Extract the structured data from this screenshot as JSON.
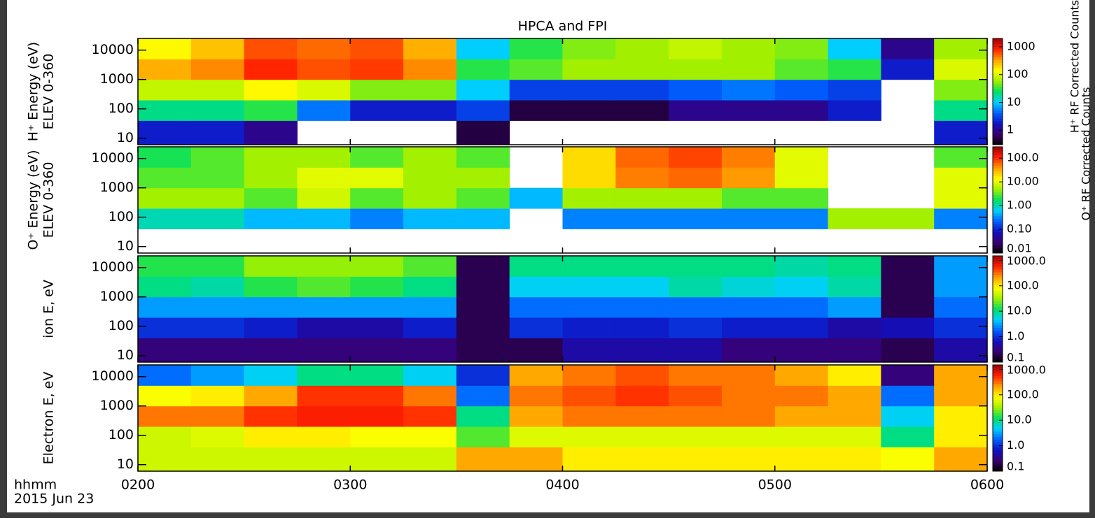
{
  "chart_data": [
    {
      "type": "heatmap",
      "title": "HPCA and FPI",
      "ylabel": [
        "H⁺ Energy (eV)",
        "ELEV 0-360"
      ],
      "colorbar_label": "H⁺ RF Corrected Counts",
      "xlim": [
        2,
        6
      ],
      "ylim": [
        6,
        25000
      ],
      "y_log": true,
      "yticks": [
        10,
        100,
        1000,
        10000
      ],
      "x_edges": [
        2,
        2.25,
        2.5,
        2.75,
        3,
        3.25,
        3.5,
        3.75,
        4,
        4.25,
        4.5,
        4.75,
        5,
        5.25,
        5.5,
        5.75,
        6
      ],
      "y_edges": [
        6,
        40,
        200,
        1000,
        5000,
        25000
      ],
      "z": [
        [
          2,
          2,
          1,
          null,
          null,
          null,
          0.5,
          null,
          null,
          null,
          null,
          null,
          null,
          null,
          null,
          2
        ],
        [
          20,
          20,
          30,
          5,
          2,
          2,
          3,
          0.5,
          0.5,
          0.5,
          1,
          1,
          1,
          2,
          null,
          20
        ],
        [
          80,
          80,
          150,
          100,
          50,
          50,
          10,
          3,
          3,
          3,
          4,
          5,
          4,
          3,
          null,
          50
        ],
        [
          300,
          400,
          800,
          600,
          700,
          400,
          30,
          40,
          60,
          60,
          60,
          60,
          40,
          30,
          2,
          100
        ],
        [
          150,
          250,
          600,
          500,
          600,
          300,
          10,
          30,
          50,
          60,
          80,
          60,
          50,
          10,
          1,
          60
        ]
      ],
      "clim": [
        0.3,
        2000
      ],
      "cticks": [
        1,
        10,
        100,
        1000
      ],
      "colormap": [
        "#000000",
        "#3a0070",
        "#1010c0",
        "#0060ff",
        "#00d0ff",
        "#00e060",
        "#a0f000",
        "#ffff00",
        "#ffa000",
        "#ff2000",
        "#a00000"
      ]
    },
    {
      "type": "heatmap",
      "ylabel": [
        "O⁺ Energy (eV)",
        "ELEV 0-360"
      ],
      "colorbar_label": "O⁺ RF Corrected Counts",
      "xlim": [
        2,
        6
      ],
      "ylim": [
        6,
        25000
      ],
      "y_log": true,
      "yticks": [
        10,
        100,
        1000,
        10000
      ],
      "x_edges": [
        2,
        2.25,
        2.5,
        2.75,
        3,
        3.25,
        3.5,
        3.75,
        4,
        4.25,
        4.5,
        4.75,
        5,
        5.25,
        5.5,
        5.75,
        6
      ],
      "y_edges": [
        6,
        40,
        200,
        1000,
        5000,
        25000
      ],
      "z": [
        [
          null,
          null,
          null,
          null,
          null,
          null,
          null,
          null,
          null,
          null,
          null,
          null,
          null,
          null,
          null,
          null
        ],
        [
          1,
          1,
          0.5,
          0.5,
          0.3,
          0.5,
          0.5,
          null,
          0.3,
          0.3,
          0.3,
          0.3,
          0.3,
          5,
          5,
          0.3
        ],
        [
          5,
          5,
          3,
          8,
          3,
          5,
          3,
          0.5,
          5,
          5,
          5,
          3,
          3,
          null,
          null,
          10
        ],
        [
          3,
          3,
          5,
          10,
          10,
          5,
          5,
          null,
          20,
          50,
          60,
          40,
          10,
          null,
          null,
          10
        ],
        [
          2,
          3,
          5,
          5,
          3,
          5,
          3,
          null,
          20,
          60,
          80,
          50,
          10,
          null,
          null,
          3
        ]
      ],
      "clim": [
        0.01,
        300
      ],
      "cticks": [
        {
          "value": 0.01,
          "label": "0.01"
        },
        {
          "value": 0.1,
          "label": "0.10"
        },
        {
          "value": 1,
          "label": "1.00"
        },
        {
          "value": 10,
          "label": "10.00"
        },
        {
          "value": 100,
          "label": "100.0"
        }
      ],
      "colormap": [
        "#000000",
        "#3a0070",
        "#1010c0",
        "#0060ff",
        "#00d0ff",
        "#00e060",
        "#a0f000",
        "#ffff00",
        "#ffa000",
        "#ff2000",
        "#a00000"
      ]
    },
    {
      "type": "heatmap",
      "ylabel": [
        "ion E, eV"
      ],
      "xlim": [
        2,
        6
      ],
      "ylim": [
        6,
        25000
      ],
      "y_log": true,
      "yticks": [
        10,
        100,
        1000,
        10000
      ],
      "x_edges": [
        2,
        2.25,
        2.5,
        2.75,
        3,
        3.25,
        3.5,
        3.75,
        4,
        4.25,
        4.5,
        4.75,
        5,
        5.25,
        5.5,
        5.75,
        6
      ],
      "y_edges": [
        6,
        40,
        200,
        1000,
        5000,
        25000
      ],
      "z": [
        [
          0.3,
          0.3,
          0.3,
          0.3,
          0.3,
          0.3,
          0.2,
          0.2,
          0.5,
          0.5,
          0.5,
          0.3,
          0.3,
          0.3,
          0.2,
          0.5
        ],
        [
          1,
          1,
          0.8,
          0.5,
          0.5,
          0.8,
          0.2,
          1,
          0.8,
          0.8,
          1,
          0.8,
          0.8,
          0.5,
          0.6,
          1
        ],
        [
          3,
          3,
          3,
          3,
          3,
          3,
          0.2,
          2,
          2,
          2,
          2,
          2,
          2,
          3,
          0.2,
          2
        ],
        [
          10,
          8,
          15,
          20,
          15,
          10,
          0.2,
          5,
          5,
          5,
          8,
          6,
          5,
          8,
          0.2,
          3
        ],
        [
          15,
          15,
          30,
          30,
          30,
          20,
          0.2,
          10,
          10,
          10,
          10,
          10,
          8,
          10,
          0.2,
          3
        ]
      ],
      "clim": [
        0.1,
        1500
      ],
      "cticks": [
        {
          "value": 0.1,
          "label": "0.1"
        },
        {
          "value": 1,
          "label": "1.0"
        },
        {
          "value": 10,
          "label": "10.0"
        },
        {
          "value": 100,
          "label": "100.0"
        },
        {
          "value": 1000,
          "label": "1000.0"
        }
      ],
      "colormap": [
        "#000000",
        "#3a0070",
        "#1010c0",
        "#0060ff",
        "#00d0ff",
        "#00e060",
        "#a0f000",
        "#ffff00",
        "#ffa000",
        "#ff2000",
        "#a00000"
      ]
    },
    {
      "type": "heatmap",
      "ylabel": [
        "Electron E, eV"
      ],
      "xlim": [
        2,
        6
      ],
      "ylim": [
        6,
        25000
      ],
      "y_log": true,
      "yticks": [
        10,
        100,
        1000,
        10000
      ],
      "x_edges": [
        2,
        2.25,
        2.5,
        2.75,
        3,
        3.25,
        3.5,
        3.75,
        4,
        4.25,
        4.5,
        4.75,
        5,
        5.25,
        5.5,
        5.75,
        6
      ],
      "y_edges": [
        6,
        40,
        200,
        1000,
        5000,
        25000
      ],
      "z": [
        [
          50,
          50,
          50,
          50,
          50,
          50,
          200,
          200,
          100,
          100,
          100,
          100,
          100,
          100,
          80,
          200
        ],
        [
          50,
          60,
          100,
          100,
          80,
          80,
          20,
          60,
          60,
          60,
          60,
          60,
          60,
          60,
          10,
          100
        ],
        [
          300,
          300,
          500,
          600,
          600,
          500,
          10,
          200,
          300,
          300,
          300,
          300,
          200,
          200,
          5,
          100
        ],
        [
          80,
          100,
          200,
          500,
          500,
          300,
          2,
          300,
          400,
          500,
          400,
          300,
          300,
          200,
          2,
          200
        ],
        [
          2,
          3,
          5,
          10,
          10,
          5,
          1,
          200,
          300,
          400,
          300,
          300,
          200,
          100,
          0.3,
          200
        ]
      ],
      "clim": [
        0.1,
        1500
      ],
      "cticks": [
        {
          "value": 0.1,
          "label": "0.1"
        },
        {
          "value": 1,
          "label": "1.0"
        },
        {
          "value": 10,
          "label": "10.0"
        },
        {
          "value": 100,
          "label": "100.0"
        },
        {
          "value": 1000,
          "label": "1000.0"
        }
      ],
      "colormap": [
        "#000000",
        "#3a0070",
        "#1010c0",
        "#0060ff",
        "#00d0ff",
        "#00e060",
        "#a0f000",
        "#ffff00",
        "#ffa000",
        "#ff2000",
        "#a00000"
      ],
      "xticks": [
        {
          "value": 2,
          "label": "0200"
        },
        {
          "value": 3,
          "label": "0300"
        },
        {
          "value": 4,
          "label": "0400"
        },
        {
          "value": 5,
          "label": "0500"
        },
        {
          "value": 6,
          "label": "0600"
        }
      ],
      "x_label": "hhmm",
      "date": "2015 Jun 23"
    }
  ]
}
